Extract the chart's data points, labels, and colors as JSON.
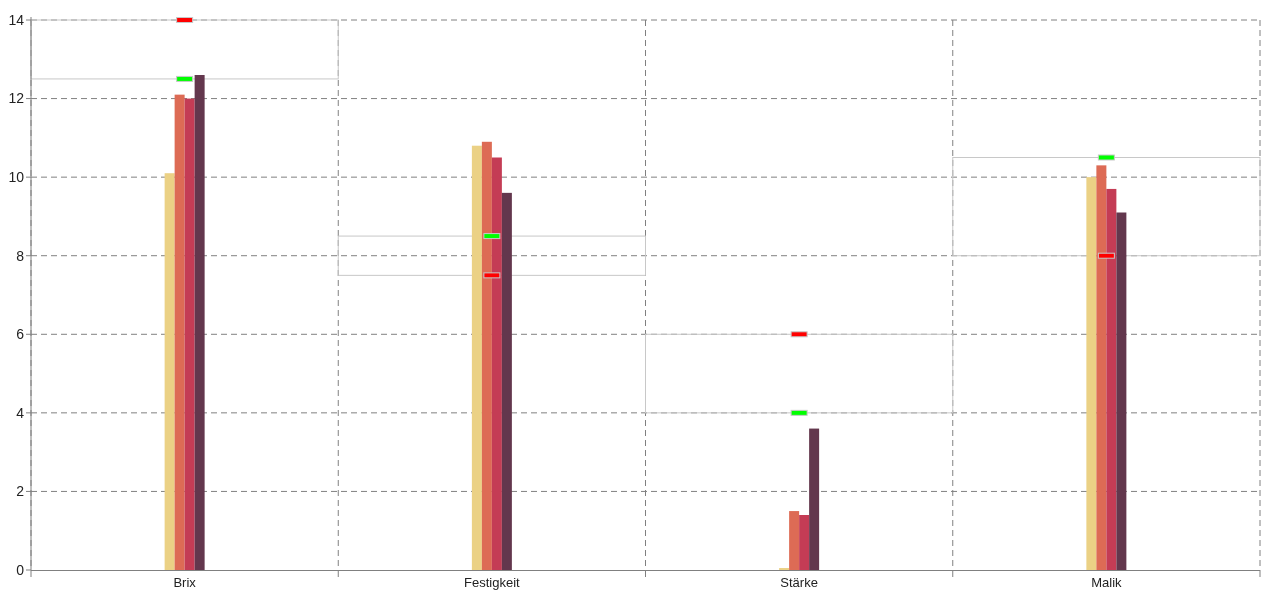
{
  "chart_data": {
    "type": "bar",
    "categories": [
      "Brix",
      "Festigkeit",
      "Stärke",
      "Malik"
    ],
    "series": [
      {
        "color": "#ebd185",
        "values": [
          10.1,
          10.8,
          0.05,
          10.0
        ]
      },
      {
        "color": "#dd6b55",
        "values": [
          12.1,
          10.9,
          1.5,
          10.3
        ]
      },
      {
        "color": "#c43c55",
        "values": [
          12.0,
          10.5,
          1.4,
          9.7
        ]
      },
      {
        "color": "#63374d",
        "values": [
          12.6,
          9.6,
          3.6,
          9.1
        ]
      },
      {
        "type": "scatter",
        "color": "#00ff00",
        "x": [
          "Brix",
          "Festigkeit",
          "Stärke",
          "Malik"
        ],
        "values": [
          12.5,
          8.5,
          4,
          10.5
        ]
      },
      {
        "type": "scatter",
        "color": "#ff0000",
        "x": [
          "Brix",
          "Festigkeit",
          "Stärke",
          "Malik"
        ],
        "values": [
          14,
          7.5,
          6,
          8
        ]
      }
    ],
    "ylim": [
      0,
      14
    ],
    "yticks": [
      0,
      2,
      4,
      6,
      8,
      10,
      12,
      14
    ],
    "grid": true,
    "marker": "square"
  }
}
